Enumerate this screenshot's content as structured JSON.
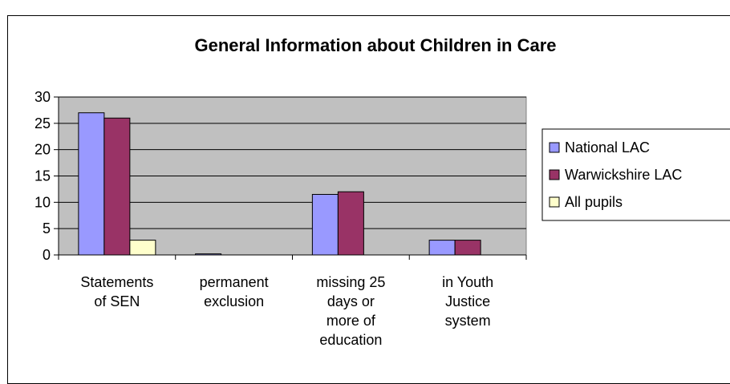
{
  "chart_data": {
    "type": "bar",
    "title": "General Information about Children in Care",
    "xlabel": "",
    "ylabel": "",
    "ylim": [
      0,
      30
    ],
    "yticks": [
      0,
      5,
      10,
      15,
      20,
      25,
      30
    ],
    "grid": true,
    "legend_position": "right",
    "categories": [
      [
        "Statements",
        "of SEN"
      ],
      [
        "permanent",
        "exclusion"
      ],
      [
        "missing 25",
        "days or",
        "more of",
        "education"
      ],
      [
        "in Youth",
        "Justice",
        "system"
      ]
    ],
    "series": [
      {
        "name": "National LAC",
        "color": "#9999ff",
        "values": [
          27,
          0.2,
          11.5,
          2.8
        ]
      },
      {
        "name": "Warwickshire LAC",
        "color": "#993366",
        "values": [
          26,
          0,
          12,
          2.8
        ]
      },
      {
        "name": "All pupils",
        "color": "#ffffcc",
        "values": [
          2.8,
          0,
          0,
          0
        ]
      }
    ],
    "plot_background": "#c0c0c0"
  }
}
